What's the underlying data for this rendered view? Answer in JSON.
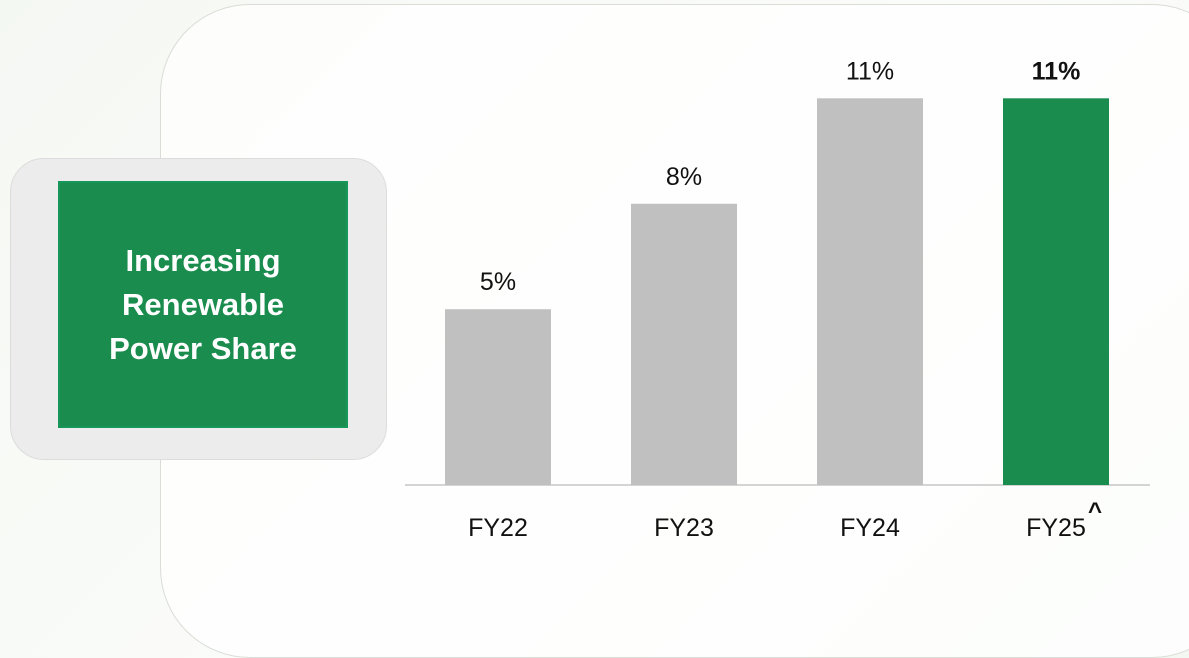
{
  "chart_data": {
    "type": "bar",
    "title": "Increasing Renewable Power Share",
    "categories": [
      "FY22",
      "FY23",
      "FY24",
      "FY25"
    ],
    "values": [
      5,
      8,
      11,
      11
    ],
    "value_labels": [
      "5%",
      "8%",
      "11%",
      "11%"
    ],
    "bar_colors": [
      "#c0c0c0",
      "#c0c0c0",
      "#c0c0c0",
      "#1a8c4e"
    ],
    "highlight_index": 3,
    "footnote_marker": "^",
    "ylim": [
      0,
      13
    ],
    "grid": false,
    "legend": "none"
  },
  "colors": {
    "accent": "#1a8c4e",
    "muted_bar": "#c0c0c0"
  }
}
